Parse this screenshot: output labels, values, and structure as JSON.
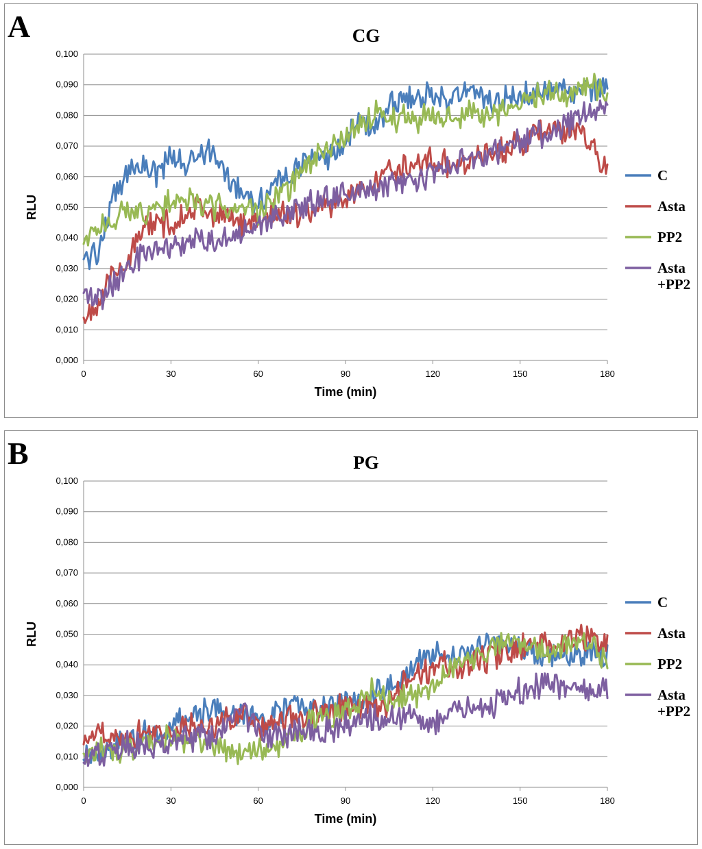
{
  "chart_data": [
    {
      "panel_label": "A",
      "type": "line",
      "title": "CG",
      "xlabel": "Time (min)",
      "ylabel": "RLU",
      "xlim": [
        0,
        180
      ],
      "ylim": [
        0,
        0.1
      ],
      "x_ticks": [
        "0",
        "30",
        "60",
        "90",
        "120",
        "150",
        "180"
      ],
      "y_ticks": [
        "0,000",
        "0,010",
        "0,020",
        "0,030",
        "0,040",
        "0,050",
        "0,060",
        "0,070",
        "0,080",
        "0,090",
        "0,100"
      ],
      "grid": true,
      "legend_position": "right",
      "x": [
        0,
        5,
        10,
        15,
        20,
        25,
        30,
        35,
        40,
        45,
        50,
        55,
        60,
        65,
        70,
        75,
        80,
        85,
        90,
        95,
        100,
        105,
        110,
        115,
        120,
        125,
        130,
        135,
        140,
        145,
        150,
        155,
        160,
        165,
        170,
        175,
        180
      ],
      "series": [
        {
          "name": "C",
          "color": "#4a7ebb",
          "values": [
            0.033,
            0.036,
            0.052,
            0.062,
            0.064,
            0.061,
            0.066,
            0.064,
            0.069,
            0.066,
            0.06,
            0.055,
            0.052,
            0.057,
            0.059,
            0.064,
            0.068,
            0.066,
            0.071,
            0.078,
            0.077,
            0.083,
            0.086,
            0.084,
            0.088,
            0.085,
            0.087,
            0.088,
            0.084,
            0.086,
            0.087,
            0.086,
            0.09,
            0.088,
            0.087,
            0.089,
            0.088
          ]
        },
        {
          "name": "Asta",
          "color": "#be4b48",
          "values": [
            0.014,
            0.02,
            0.027,
            0.033,
            0.042,
            0.045,
            0.044,
            0.049,
            0.05,
            0.047,
            0.046,
            0.045,
            0.046,
            0.049,
            0.047,
            0.048,
            0.05,
            0.051,
            0.053,
            0.056,
            0.058,
            0.062,
            0.063,
            0.064,
            0.066,
            0.064,
            0.065,
            0.066,
            0.068,
            0.069,
            0.071,
            0.073,
            0.075,
            0.074,
            0.075,
            0.069,
            0.063
          ]
        },
        {
          "name": "PP2",
          "color": "#98b954",
          "values": [
            0.038,
            0.043,
            0.047,
            0.048,
            0.049,
            0.049,
            0.052,
            0.052,
            0.051,
            0.05,
            0.049,
            0.049,
            0.049,
            0.052,
            0.055,
            0.062,
            0.066,
            0.069,
            0.072,
            0.078,
            0.08,
            0.079,
            0.08,
            0.079,
            0.08,
            0.079,
            0.08,
            0.081,
            0.081,
            0.082,
            0.084,
            0.086,
            0.087,
            0.087,
            0.089,
            0.089,
            0.086
          ]
        },
        {
          "name": "Asta\n+PP2",
          "color": "#7d5fa0",
          "values": [
            0.022,
            0.02,
            0.024,
            0.03,
            0.035,
            0.036,
            0.037,
            0.039,
            0.04,
            0.038,
            0.041,
            0.042,
            0.044,
            0.047,
            0.049,
            0.05,
            0.052,
            0.053,
            0.054,
            0.055,
            0.056,
            0.058,
            0.058,
            0.059,
            0.061,
            0.063,
            0.065,
            0.066,
            0.068,
            0.07,
            0.071,
            0.073,
            0.075,
            0.077,
            0.08,
            0.083,
            0.082
          ]
        }
      ]
    },
    {
      "panel_label": "B",
      "type": "line",
      "title": "PG",
      "xlabel": "Time (min)",
      "ylabel": "RLU",
      "xlim": [
        0,
        180
      ],
      "ylim": [
        0,
        0.1
      ],
      "x_ticks": [
        "0",
        "30",
        "60",
        "90",
        "120",
        "150",
        "180"
      ],
      "y_ticks": [
        "0,000",
        "0,010",
        "0,020",
        "0,030",
        "0,040",
        "0,050",
        "0,060",
        "0,070",
        "0,080",
        "0,090",
        "0,100"
      ],
      "grid": true,
      "legend_position": "right",
      "x": [
        0,
        5,
        10,
        15,
        20,
        25,
        30,
        35,
        40,
        45,
        50,
        55,
        60,
        65,
        70,
        75,
        80,
        85,
        90,
        95,
        100,
        105,
        110,
        115,
        120,
        125,
        130,
        135,
        140,
        145,
        150,
        155,
        160,
        165,
        170,
        175,
        180
      ],
      "series": [
        {
          "name": "C",
          "color": "#4a7ebb",
          "values": [
            0.009,
            0.012,
            0.014,
            0.016,
            0.017,
            0.018,
            0.02,
            0.022,
            0.024,
            0.025,
            0.024,
            0.023,
            0.022,
            0.024,
            0.026,
            0.027,
            0.025,
            0.026,
            0.028,
            0.027,
            0.03,
            0.033,
            0.036,
            0.04,
            0.043,
            0.042,
            0.043,
            0.046,
            0.047,
            0.046,
            0.045,
            0.044,
            0.043,
            0.044,
            0.043,
            0.044,
            0.043
          ]
        },
        {
          "name": "Asta",
          "color": "#be4b48",
          "values": [
            0.014,
            0.017,
            0.019,
            0.016,
            0.018,
            0.019,
            0.018,
            0.019,
            0.02,
            0.021,
            0.022,
            0.024,
            0.02,
            0.021,
            0.022,
            0.023,
            0.024,
            0.025,
            0.026,
            0.027,
            0.026,
            0.027,
            0.033,
            0.037,
            0.039,
            0.04,
            0.038,
            0.041,
            0.043,
            0.044,
            0.046,
            0.047,
            0.046,
            0.047,
            0.049,
            0.048,
            0.046
          ]
        },
        {
          "name": "PP2",
          "color": "#98b954",
          "values": [
            0.011,
            0.013,
            0.01,
            0.013,
            0.014,
            0.014,
            0.016,
            0.015,
            0.014,
            0.013,
            0.012,
            0.011,
            0.012,
            0.013,
            0.016,
            0.019,
            0.021,
            0.023,
            0.024,
            0.027,
            0.033,
            0.028,
            0.029,
            0.031,
            0.034,
            0.038,
            0.04,
            0.042,
            0.045,
            0.047,
            0.046,
            0.045,
            0.044,
            0.046,
            0.047,
            0.046,
            0.042
          ]
        },
        {
          "name": "Asta\n+PP2",
          "color": "#7d5fa0",
          "values": [
            0.008,
            0.011,
            0.013,
            0.014,
            0.013,
            0.014,
            0.015,
            0.016,
            0.017,
            0.016,
            0.021,
            0.025,
            0.018,
            0.016,
            0.017,
            0.019,
            0.018,
            0.019,
            0.021,
            0.022,
            0.023,
            0.022,
            0.022,
            0.023,
            0.022,
            0.024,
            0.025,
            0.026,
            0.027,
            0.029,
            0.031,
            0.032,
            0.034,
            0.033,
            0.031,
            0.032,
            0.032
          ]
        }
      ]
    }
  ]
}
